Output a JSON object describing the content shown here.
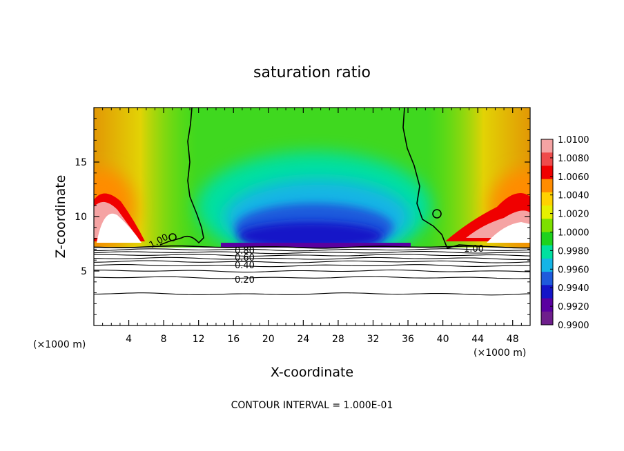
{
  "chart_data": {
    "type": "heatmap",
    "title": "saturation ratio",
    "xlabel": "X-coordinate",
    "ylabel": "Z-coordinate",
    "x_unit_label_left": "(×1000 m)",
    "x_unit_label_right": "(×1000 m)",
    "xlim": [
      0,
      50
    ],
    "ylim": [
      0,
      20
    ],
    "x_ticks": [
      4,
      8,
      12,
      16,
      20,
      24,
      28,
      32,
      36,
      40,
      44,
      48
    ],
    "y_ticks": [
      5,
      10,
      15
    ],
    "colorbar": {
      "levels": [
        "1.0100",
        "1.0080",
        "1.0060",
        "1.0040",
        "1.0020",
        "1.0000",
        "0.9980",
        "0.9960",
        "0.9940",
        "0.9920",
        "0.9900"
      ],
      "colors": [
        "#f5a3a3",
        "#ef4b4b",
        "#f00000",
        "#ff8c00",
        "#ffd200",
        "#e6f000",
        "#7de000",
        "#1ed21e",
        "#00e0a0",
        "#14b4e6",
        "#1e5adc",
        "#1414c8",
        "#5a00a0",
        "#6e1e8c"
      ]
    },
    "contour_labels": [
      "1.00",
      "1.00",
      "0.80",
      "0.60",
      "0.40",
      "0.20"
    ],
    "contour_levels_below_cloud": [
      7.2,
      6.95,
      6.7,
      6.45,
      6.15,
      5.85,
      5.5,
      5.0,
      4.4,
      2.9
    ],
    "footnote": "CONTOUR INTERVAL = 1.000E-01"
  }
}
